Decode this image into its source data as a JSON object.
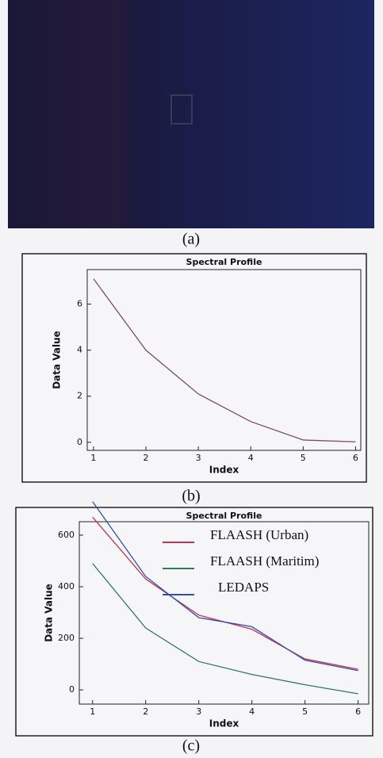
{
  "captions": [
    "(a)",
    "(b)",
    "(c)"
  ],
  "chart_data": [
    {
      "type": "line",
      "title": "Spectral Profile",
      "x_label": "Index",
      "y_label": "Data Value",
      "x": [
        1,
        2,
        3,
        4,
        5,
        6
      ],
      "values": [
        7.1,
        4.0,
        2.1,
        0.9,
        0.1,
        0.02
      ],
      "color": "#7a5058",
      "xlim": [
        0.88,
        6.1
      ],
      "xticks": [
        1,
        2,
        3,
        4,
        5,
        6
      ],
      "ylim": [
        -0.35,
        7.5
      ],
      "yticks": [
        0,
        2,
        4,
        6
      ]
    },
    {
      "type": "line",
      "title": "Spectral Profile",
      "x_label": "Index",
      "y_label": "Data Value",
      "x": [
        1,
        2,
        3,
        4,
        5,
        6
      ],
      "series": [
        {
          "name": "FLAASH (Urban)",
          "color": "#c8324c",
          "values": [
            670,
            430,
            290,
            235,
            120,
            80
          ]
        },
        {
          "name": "FLAASH (Maritim)",
          "color": "#2f7a5c",
          "values": [
            490,
            240,
            110,
            60,
            20,
            -15
          ]
        },
        {
          "name": "LEDAPS",
          "color": "#2c50b0",
          "values": [
            730,
            440,
            280,
            245,
            115,
            75
          ]
        }
      ],
      "xlim": [
        0.75,
        6.2
      ],
      "xticks": [
        1,
        2,
        3,
        4,
        5,
        6
      ],
      "ylim": [
        -55,
        652
      ],
      "yticks": [
        0,
        200,
        400,
        600
      ],
      "legend": "upper right"
    }
  ]
}
